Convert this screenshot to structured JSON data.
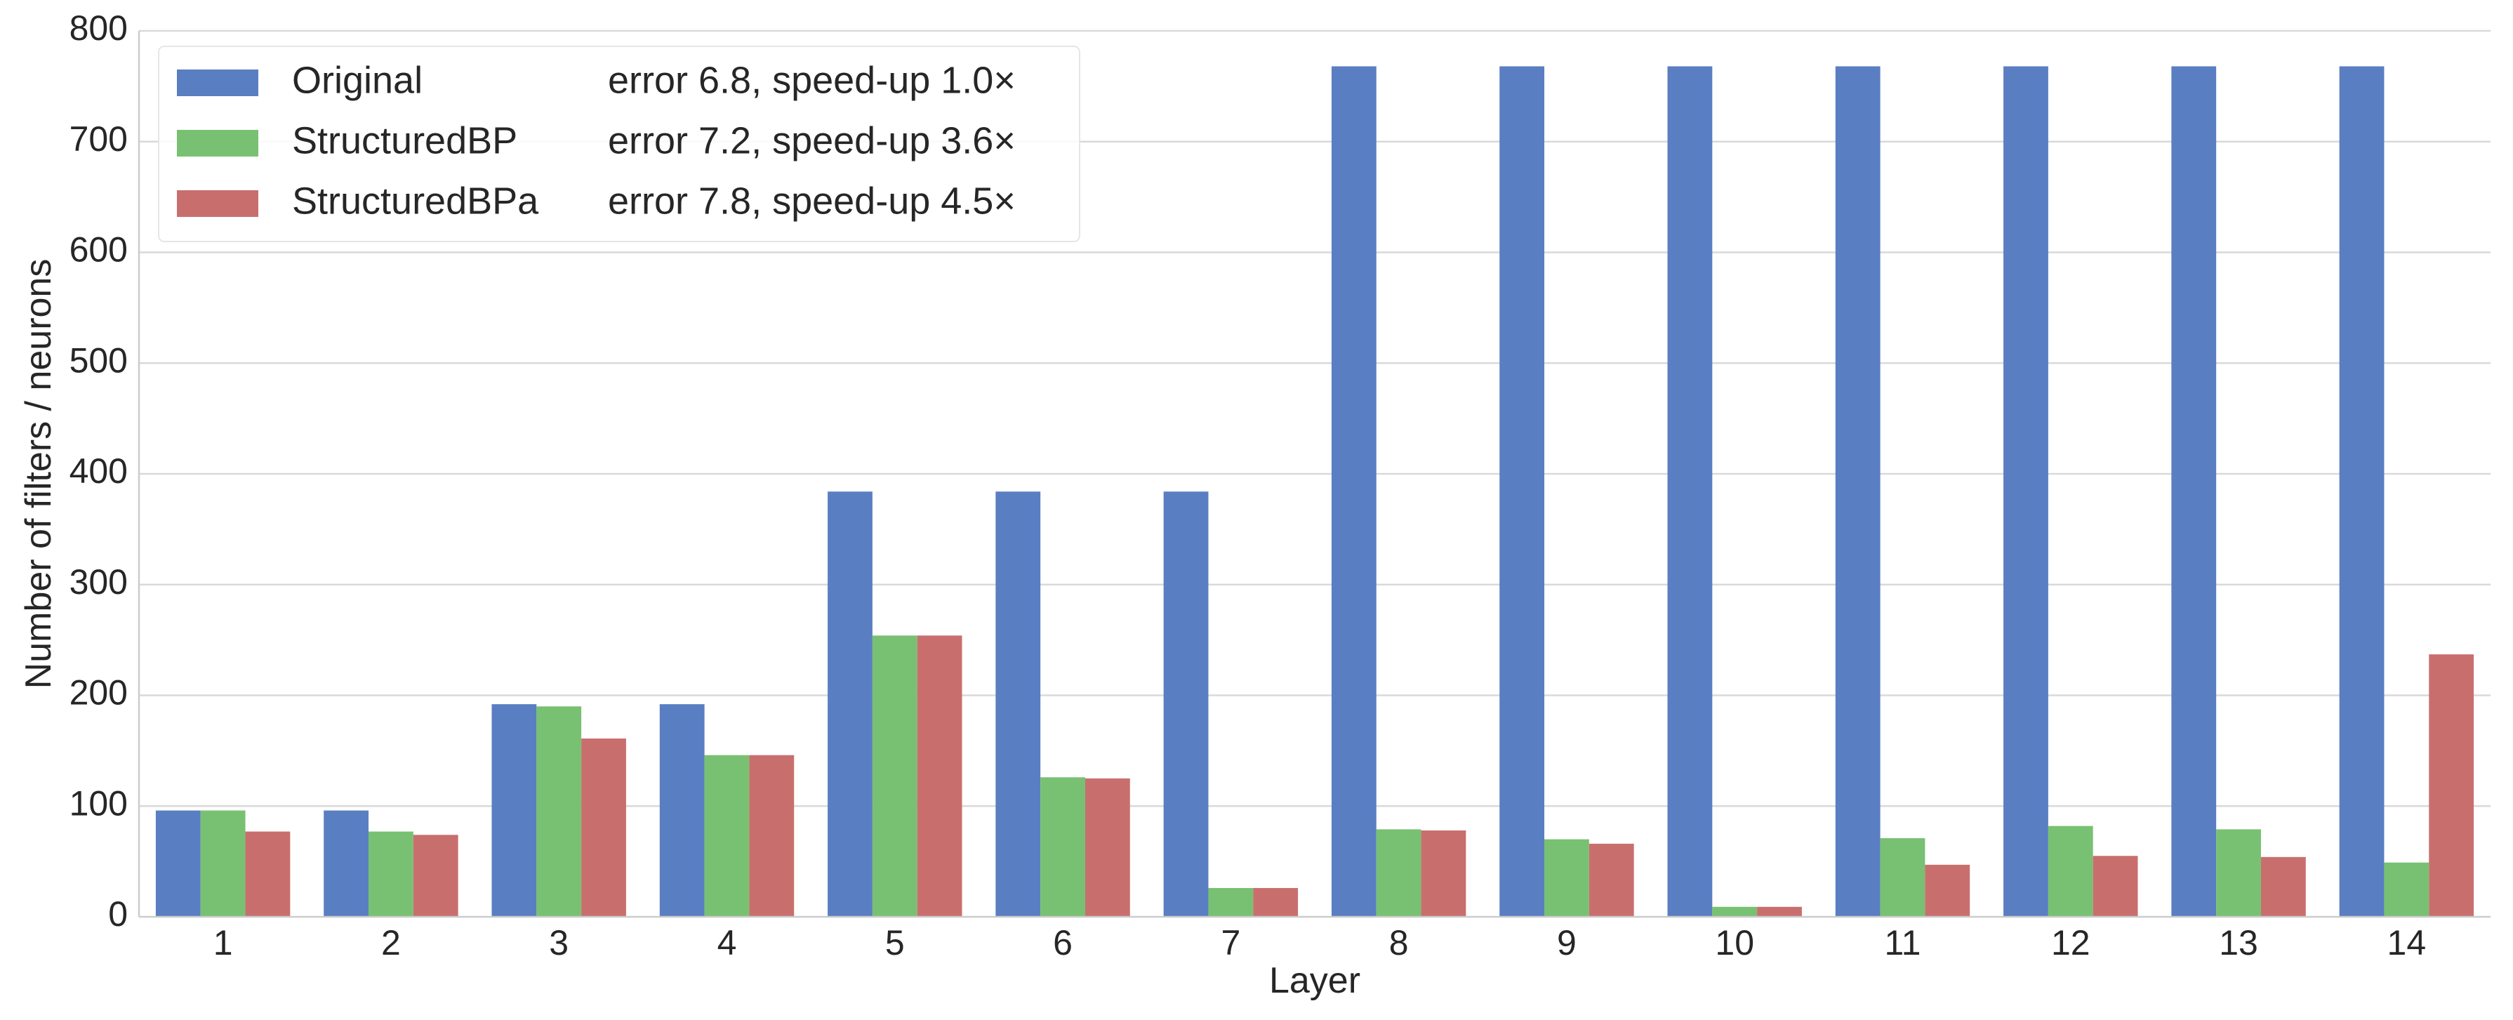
{
  "chart_data": {
    "type": "bar",
    "xlabel": "Layer",
    "ylabel": "Number of filters / neurons",
    "ylim": [
      0,
      800
    ],
    "yticks": [
      0,
      100,
      200,
      300,
      400,
      500,
      600,
      700,
      800
    ],
    "categories": [
      "1",
      "2",
      "3",
      "4",
      "5",
      "6",
      "7",
      "8",
      "9",
      "10",
      "11",
      "12",
      "13",
      "14"
    ],
    "grid": "horizontal",
    "legend_position": "top-left",
    "series": [
      {
        "name": "Original",
        "legend_note": "error 6.8, speed-up 1.0×",
        "color": "#5a7ec2",
        "values": [
          96,
          96,
          192,
          192,
          384,
          384,
          384,
          768,
          768,
          768,
          768,
          768,
          768,
          768
        ]
      },
      {
        "name": "StructuredBP",
        "legend_note": "error 7.2, speed-up 3.6×",
        "color": "#78c172",
        "values": [
          96,
          77,
          190,
          146,
          254,
          126,
          26,
          79,
          70,
          9,
          71,
          82,
          79,
          49
        ]
      },
      {
        "name": "StructuredBPa",
        "legend_note": "error 7.8, speed-up 4.5×",
        "color": "#c86f6e",
        "values": [
          77,
          74,
          161,
          146,
          254,
          125,
          26,
          78,
          66,
          9,
          47,
          55,
          54,
          237
        ]
      }
    ]
  }
}
